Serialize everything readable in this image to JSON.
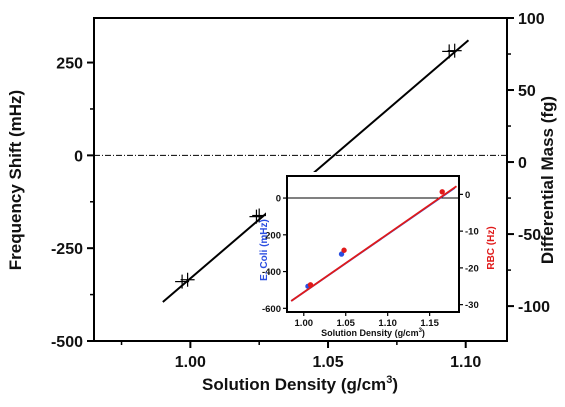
{
  "chart_data": [
    {
      "type": "line",
      "xlabel": "Solution Density (g/cm",
      "xlabel_sup": "3",
      "xlabel_close": ")",
      "ylabel": "Frequency Shift (mHz)",
      "ylabel_right": "Differential Mass (fg)",
      "xlim": [
        0.965,
        1.115
      ],
      "ylim": [
        -500,
        370
      ],
      "ylim_right": [
        -100,
        100
      ],
      "x_ticks": [
        {
          "value": 1.0,
          "label": "1.00"
        },
        {
          "value": 1.05,
          "label": "1.05"
        },
        {
          "value": 1.1,
          "label": "1.10"
        }
      ],
      "y_ticks": [
        {
          "value": 250,
          "label": "250"
        },
        {
          "value": 0,
          "label": "0"
        },
        {
          "value": -250,
          "label": "-250"
        },
        {
          "value": -500,
          "label": "-500"
        }
      ],
      "y_right_ticks": [
        {
          "value": -100,
          "label": "-100"
        },
        {
          "value": -50,
          "label": "-50"
        },
        {
          "value": 0,
          "label": "0"
        },
        {
          "value": 50,
          "label": "50"
        },
        {
          "value": 100,
          "label": "100"
        }
      ],
      "points": [
        {
          "x": 0.997,
          "y": -340
        },
        {
          "x": 0.999,
          "y": -335
        },
        {
          "x": 1.024,
          "y": -165
        },
        {
          "x": 1.025,
          "y": -162
        },
        {
          "x": 1.094,
          "y": 280
        },
        {
          "x": 1.096,
          "y": 282
        }
      ],
      "fit_line": {
        "x": [
          0.99,
          1.101
        ],
        "y": [
          -395,
          310
        ]
      },
      "reference_line": {
        "y": 0,
        "style": "dash-dot"
      },
      "grid": false
    },
    {
      "type": "line",
      "inset": true,
      "xlabel": "Solution Density (g/cm",
      "xlabel_sup": "3",
      "xlabel_close": ")",
      "ylabel": "E. Coli (mHz)",
      "ylabel_right": "RBC (Hz)",
      "xlim": [
        0.98,
        1.185
      ],
      "ylim": [
        -620,
        120
      ],
      "ylim_right": [
        -32,
        5
      ],
      "x_ticks": [
        {
          "value": 1.0,
          "label": "1.00"
        },
        {
          "value": 1.05,
          "label": "1.05"
        },
        {
          "value": 1.1,
          "label": "1.10"
        },
        {
          "value": 1.15,
          "label": "1.15"
        }
      ],
      "y_ticks": [
        {
          "value": 0,
          "label": "0"
        },
        {
          "value": -200,
          "label": "-200"
        },
        {
          "value": -400,
          "label": "-400"
        },
        {
          "value": -600,
          "label": "-600"
        }
      ],
      "y_right_ticks": [
        {
          "value": 0,
          "label": "0"
        },
        {
          "value": -10,
          "label": "-10"
        },
        {
          "value": -20,
          "label": "-20"
        },
        {
          "value": -30,
          "label": "-30"
        }
      ],
      "series": [
        {
          "color": "#2b4ee0",
          "axis": "left",
          "points": [
            {
              "x": 1.005,
              "y": -480
            },
            {
              "x": 1.045,
              "y": -305
            }
          ],
          "fit_line": {
            "x": [
              0.985,
              1.18
            ],
            "y": [
              -560,
              55
            ]
          }
        },
        {
          "color": "#e01a1a",
          "axis": "right",
          "points": [
            {
              "x": 1.008,
              "y": -24.6
            },
            {
              "x": 1.048,
              "y": -15.2
            },
            {
              "x": 1.165,
              "y": 0.7
            }
          ],
          "fit_line": {
            "x": [
              0.985,
              1.182
            ],
            "y": [
              -29,
              2.2
            ]
          }
        }
      ],
      "reference_line": {
        "y": 0,
        "style": "solid"
      },
      "grid": false
    }
  ]
}
